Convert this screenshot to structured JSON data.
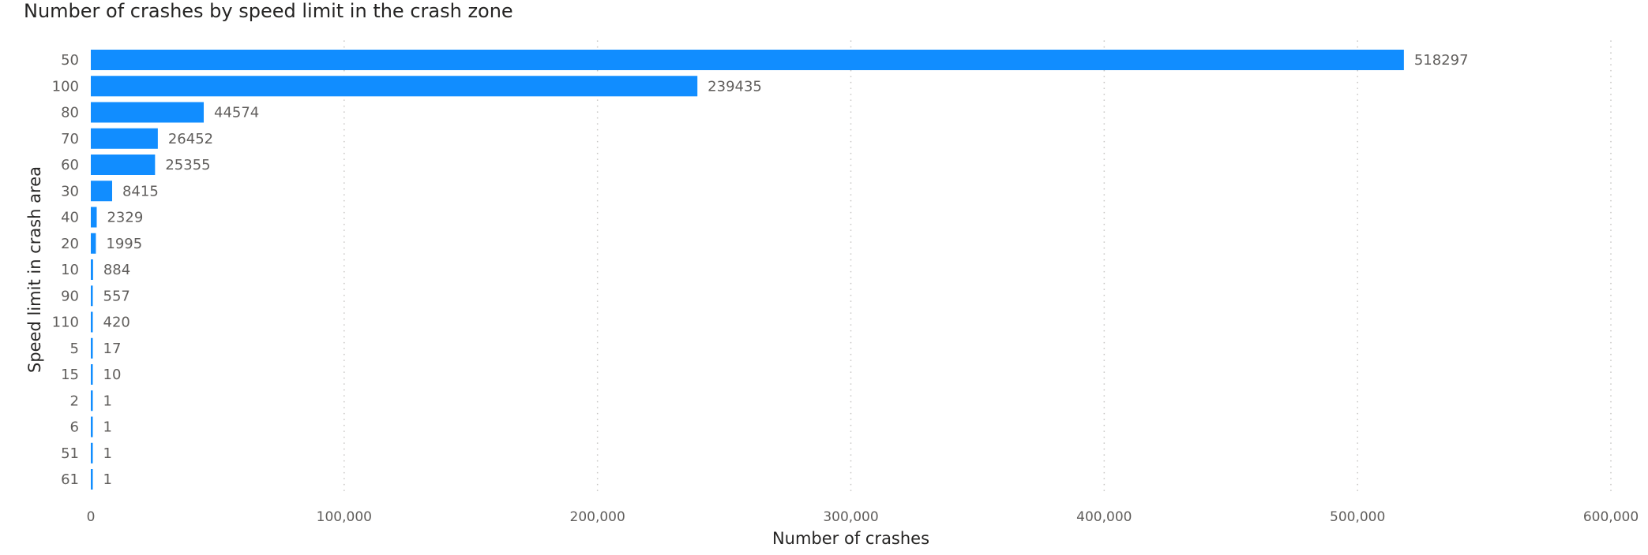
{
  "chart_data": {
    "type": "bar",
    "orientation": "horizontal",
    "title": "Number of crashes by speed limit in the crash zone",
    "xlabel": "Number of crashes",
    "ylabel": "Speed limit in crash area",
    "categories": [
      "50",
      "100",
      "80",
      "70",
      "60",
      "30",
      "40",
      "20",
      "10",
      "90",
      "110",
      "5",
      "15",
      "2",
      "6",
      "51",
      "61"
    ],
    "values": [
      518297,
      239435,
      44574,
      26452,
      25355,
      8415,
      2329,
      1995,
      884,
      557,
      420,
      17,
      10,
      1,
      1,
      1,
      1
    ],
    "data_labels": [
      "518297",
      "239435",
      "44574",
      "26452",
      "25355",
      "8415",
      "2329",
      "1995",
      "884",
      "557",
      "420",
      "17",
      "10",
      "1",
      "1",
      "1",
      "1"
    ],
    "xlim": [
      0,
      600000
    ],
    "x_ticks": [
      0,
      100000,
      200000,
      300000,
      400000,
      500000,
      600000
    ],
    "x_tick_labels": [
      "0",
      "100,000",
      "200,000",
      "300,000",
      "400,000",
      "500,000",
      "600,000"
    ],
    "grid": "vertical dotted",
    "legend": "none",
    "bar_color": "#118DFF"
  }
}
